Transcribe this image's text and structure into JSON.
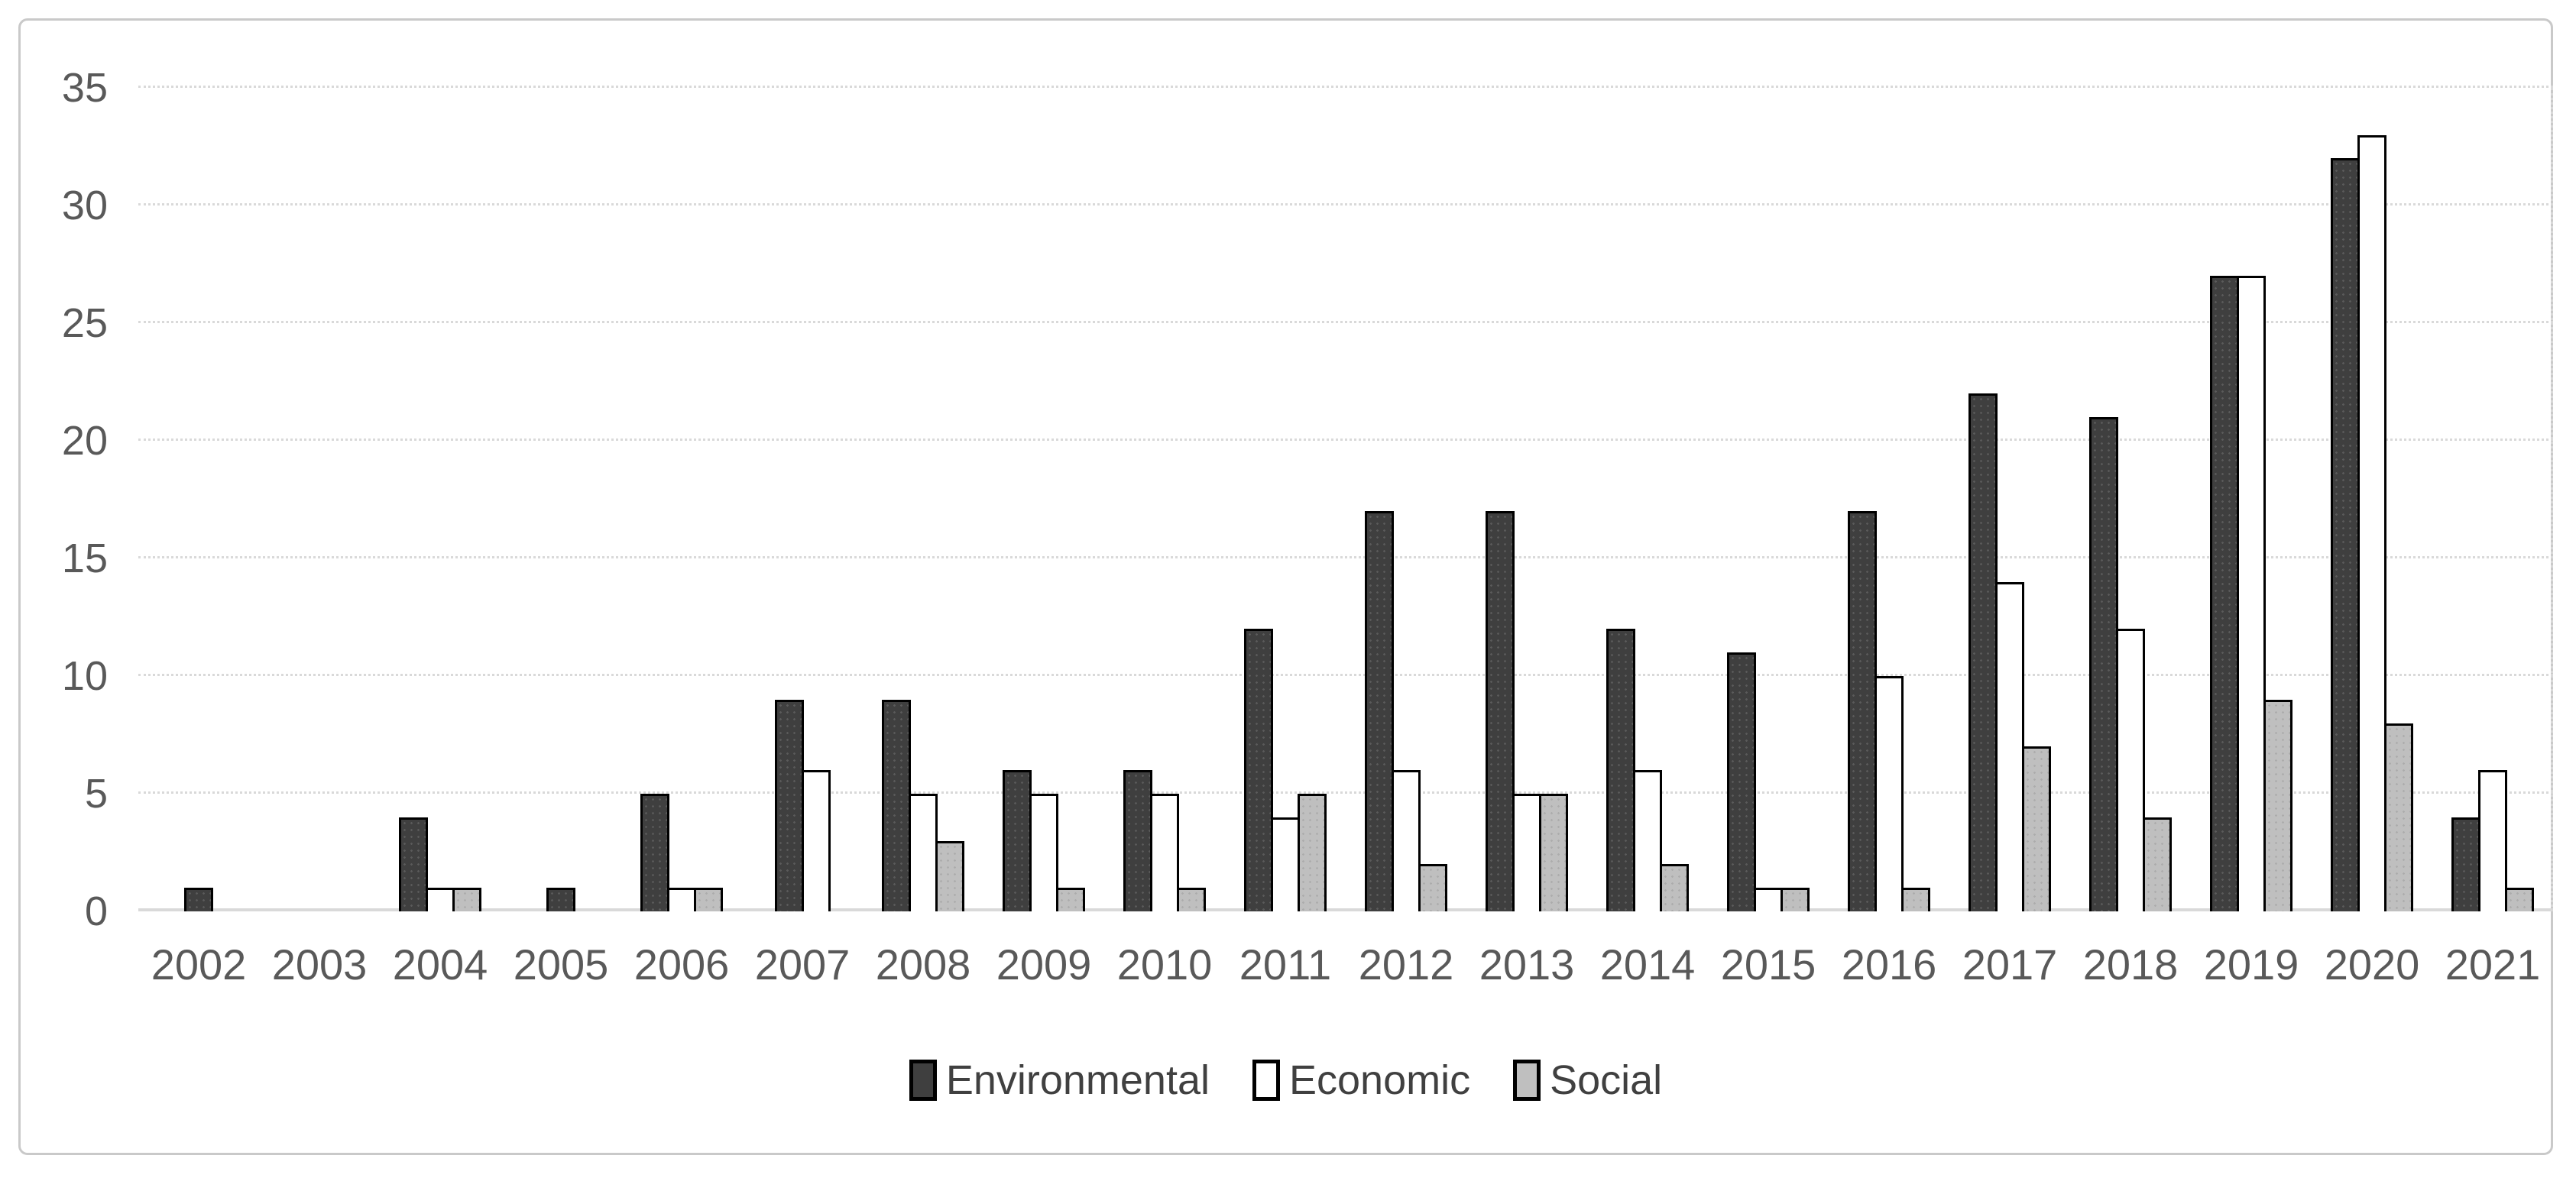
{
  "chart_data": {
    "type": "bar",
    "title": "",
    "xlabel": "",
    "ylabel": "",
    "categories": [
      "2002",
      "2003",
      "2004",
      "2005",
      "2006",
      "2007",
      "2008",
      "2009",
      "2010",
      "2011",
      "2012",
      "2013",
      "2014",
      "2015",
      "2016",
      "2017",
      "2018",
      "2019",
      "2020",
      "2021"
    ],
    "series": [
      {
        "name": "Environmental",
        "key": "env",
        "fill": "#3f3f3f",
        "values": [
          1,
          0,
          4,
          1,
          5,
          9,
          9,
          6,
          6,
          12,
          17,
          17,
          12,
          11,
          17,
          22,
          21,
          27,
          32,
          4
        ]
      },
      {
        "name": "Economic",
        "key": "econ",
        "fill": "#ffffff",
        "values": [
          0,
          0,
          1,
          0,
          1,
          6,
          5,
          5,
          5,
          4,
          6,
          5,
          6,
          1,
          10,
          14,
          12,
          27,
          33,
          6
        ]
      },
      {
        "name": "Social",
        "key": "soc",
        "fill": "#bfbfbf",
        "values": [
          0,
          0,
          1,
          0,
          1,
          0,
          3,
          1,
          1,
          5,
          2,
          5,
          2,
          1,
          1,
          7,
          4,
          9,
          8,
          1
        ]
      }
    ],
    "ylim": [
      0,
      35
    ],
    "ytick_step": 5,
    "yticks": [
      "0",
      "5",
      "10",
      "15",
      "20",
      "25",
      "30",
      "35"
    ],
    "grid": true,
    "legend_position": "bottom-center",
    "colors": {
      "bar_border": "#000000",
      "gridline": "#d9d9d9",
      "axis_text": "#595959",
      "legend_text": "#404040",
      "frame_border": "#c9c9c9",
      "background": "#ffffff"
    }
  }
}
